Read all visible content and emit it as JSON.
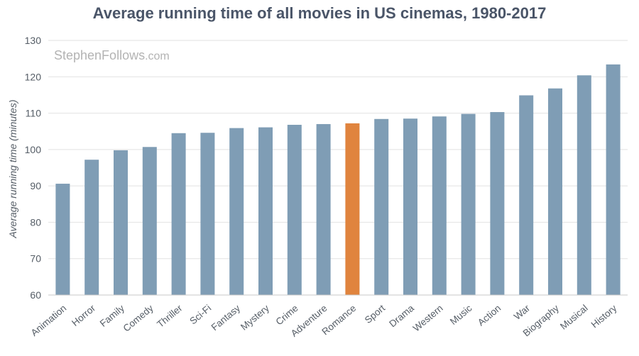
{
  "chart_data": {
    "type": "bar",
    "title": "Average running time of all movies in US cinemas, 1980-2017",
    "xlabel": "",
    "ylabel": "Average running time (minutes)",
    "ylim": [
      60,
      130
    ],
    "yticks": [
      60,
      70,
      80,
      90,
      100,
      110,
      120,
      130
    ],
    "grid": true,
    "categories": [
      "Animation",
      "Horror",
      "Family",
      "Comedy",
      "Thriller",
      "Sci-Fi",
      "Fantasy",
      "Mystery",
      "Crime",
      "Adventure",
      "Romance",
      "Sport",
      "Drama",
      "Western",
      "Music",
      "Action",
      "War",
      "Biography",
      "Musical",
      "History"
    ],
    "values": [
      90.6,
      97.2,
      99.8,
      100.7,
      104.5,
      104.6,
      105.9,
      106.1,
      106.8,
      107.0,
      107.2,
      108.4,
      108.5,
      109.1,
      109.8,
      110.3,
      114.9,
      116.8,
      120.4,
      123.4
    ],
    "highlight": "Romance",
    "watermark": {
      "brand": "StephenFollows",
      "suffix": ".com"
    }
  },
  "colors": {
    "bar": "#7f9db5",
    "highlight": "#e0843e",
    "grid": "#e2e2e2",
    "axis": "#c8c8c8"
  }
}
